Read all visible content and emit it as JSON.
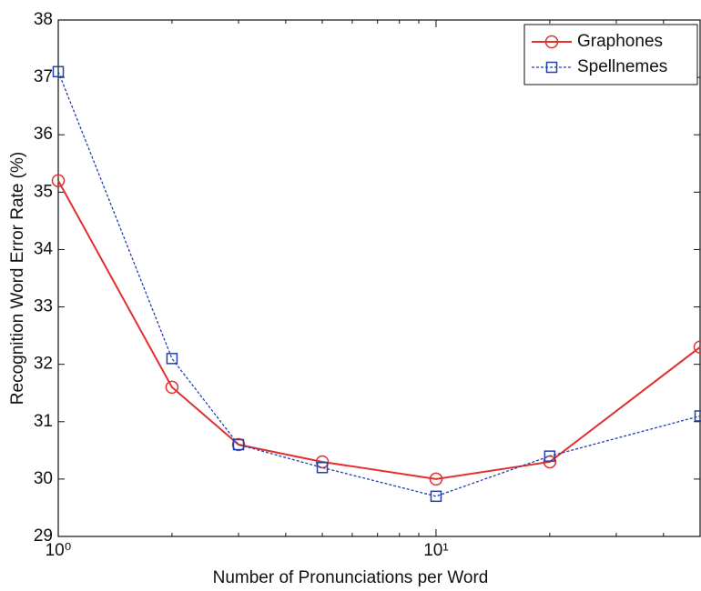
{
  "chart_data": {
    "type": "line",
    "xlabel": "Number of Pronunciations per Word",
    "ylabel": "Recognition Word Error Rate (%)",
    "x": [
      1,
      2,
      3,
      5,
      10,
      20,
      50
    ],
    "xscale": "log",
    "xlim": [
      1,
      50
    ],
    "xticks": [
      {
        "value": 1,
        "label": "10⁰"
      },
      {
        "value": 10,
        "label": "10¹"
      }
    ],
    "xminorticks": [
      2,
      3,
      4,
      5,
      6,
      7,
      8,
      9,
      20,
      30,
      40,
      50
    ],
    "ylim": [
      29,
      38
    ],
    "yticks": [
      29,
      30,
      31,
      32,
      33,
      34,
      35,
      36,
      37,
      38
    ],
    "legend": "upper right",
    "series": [
      {
        "name": "Graphones",
        "color": "#e03030",
        "marker": "circle",
        "linestyle": "solid",
        "values": [
          35.2,
          31.6,
          30.6,
          30.3,
          30.0,
          30.3,
          32.3
        ]
      },
      {
        "name": "Spellnemes",
        "color": "#2040b0",
        "marker": "square",
        "linestyle": "dotted",
        "values": [
          37.1,
          32.1,
          30.6,
          30.2,
          29.7,
          30.4,
          31.1
        ]
      }
    ]
  }
}
